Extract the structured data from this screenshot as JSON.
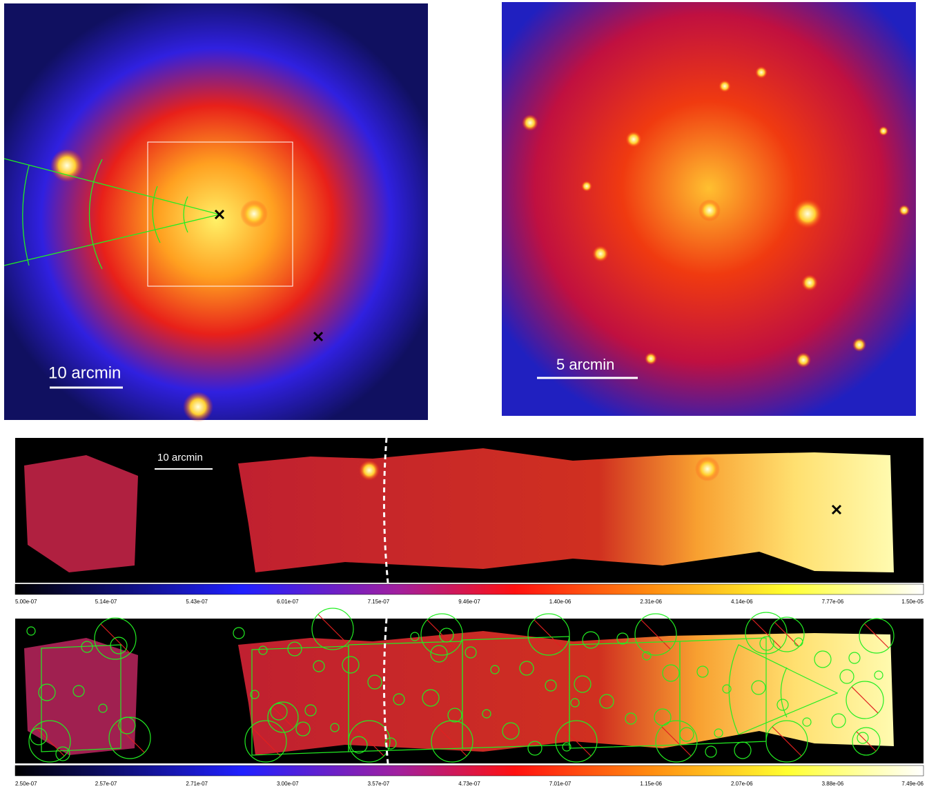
{
  "panels": [
    {
      "scale_label": "10 arcmin"
    },
    {
      "scale_label": "5 arcmin"
    }
  ],
  "strip": {
    "scale_label": "10 arcmin",
    "colorbar_ticks": [
      "5.00e-07",
      "5.14e-07",
      "5.43e-07",
      "6.01e-07",
      "7.15e-07",
      "9.46e-07",
      "1.40e-06",
      "2.31e-06",
      "4.14e-06",
      "7.77e-06",
      "1.50e-05"
    ]
  },
  "strip_masked": {
    "colorbar_ticks": [
      "2.50e-07",
      "2.57e-07",
      "2.71e-07",
      "3.00e-07",
      "3.57e-07",
      "4.73e-07",
      "7.01e-07",
      "1.15e-06",
      "2.07e-06",
      "3.88e-06",
      "7.49e-06"
    ]
  }
}
